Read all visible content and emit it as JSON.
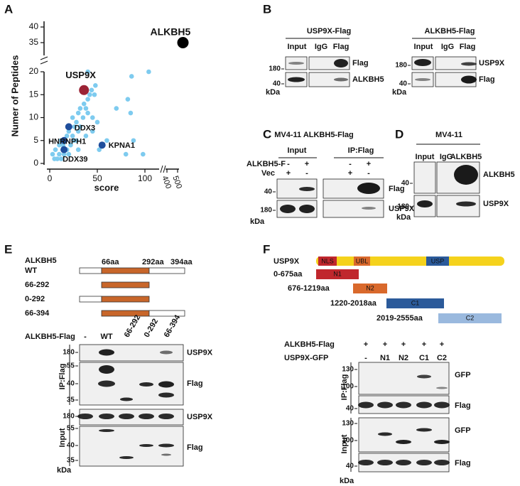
{
  "panel_a": {
    "label": "A",
    "type": "scatter",
    "ylabel": "Numer of Peptides",
    "xlabel": "score",
    "xticks": [
      0,
      50,
      100,
      400,
      500
    ],
    "yticks": [
      0,
      5,
      10,
      15,
      20,
      35,
      40
    ],
    "color": "#7ecbef",
    "x": [
      5,
      8,
      10,
      12,
      3,
      15,
      18,
      20,
      6,
      10,
      14,
      22,
      25,
      28,
      12,
      18,
      24,
      30,
      20,
      26,
      32,
      28,
      35,
      24,
      30,
      38,
      32,
      36,
      40,
      42,
      44,
      48,
      47,
      40,
      45,
      50,
      38,
      60,
      52,
      30,
      80,
      88,
      98,
      86,
      104,
      85,
      40,
      82,
      70,
      45
    ],
    "y": [
      1,
      1,
      2,
      1,
      2,
      2,
      3,
      2,
      3,
      4,
      4,
      4,
      5,
      5,
      5,
      6,
      6,
      7,
      7,
      8,
      8,
      9,
      10,
      10,
      11,
      12,
      12,
      13,
      14,
      15,
      16,
      17,
      15,
      11,
      10,
      9,
      6,
      5,
      3,
      3,
      2,
      5,
      2,
      19,
      20,
      11,
      20,
      14,
      12,
      7
    ],
    "highlights": [
      {
        "name": "ALKBH5",
        "x": 550,
        "y": 35,
        "color": "#000000"
      },
      {
        "name": "USP9X",
        "x": 36,
        "y": 16,
        "color": "#9b2335"
      },
      {
        "name": "DDX3",
        "x": 20,
        "y": 8,
        "color": "#1f4e9c"
      },
      {
        "name": "HNRNPH1",
        "x": 15,
        "y": 5,
        "color": "#1f4e9c"
      },
      {
        "name": "KPNA1",
        "x": 55,
        "y": 4,
        "color": "#1f4e9c"
      },
      {
        "name": "DDX39",
        "x": 15,
        "y": 3,
        "color": "#1f4e9c"
      }
    ]
  },
  "panel_b": {
    "label": "B",
    "blots": [
      {
        "title": "USP9X-Flag",
        "lanes": [
          "Input",
          "IgG",
          "Flag"
        ],
        "bands": [
          "Flag",
          "ALKBH5"
        ],
        "markers": [
          180,
          40
        ],
        "unit": "kDa"
      },
      {
        "title": "ALKBH5-Flag",
        "lanes": [
          "Input",
          "IgG",
          "Flag"
        ],
        "bands": [
          "USP9X",
          "Flag"
        ],
        "markers": [
          180,
          40
        ],
        "unit": "kDa"
      }
    ]
  },
  "panel_c": {
    "label": "C",
    "title": "MV4-11 ALKBH5-Flag",
    "groups": [
      "Input",
      "IP:Flag"
    ],
    "conditions": [
      {
        "name": "ALKBH5-F",
        "signs": [
          "-",
          "+",
          "-",
          "+"
        ]
      },
      {
        "name": "Vec",
        "signs": [
          "+",
          "-",
          "+",
          "-"
        ]
      }
    ],
    "bands": [
      "Flag",
      "USP9X"
    ],
    "markers": [
      40,
      180
    ],
    "unit": "kDa"
  },
  "panel_d": {
    "label": "D",
    "title": "MV4-11",
    "lanes": [
      "Input",
      "IgG",
      "ALKBH5"
    ],
    "bands": [
      "ALKBH5",
      "USP9X"
    ],
    "markers": [
      40,
      180
    ],
    "unit": "kDa"
  },
  "panel_e": {
    "label": "E",
    "protein": "ALKBH5",
    "positions": [
      "66aa",
      "292aa",
      "394aa"
    ],
    "constructs": [
      "WT",
      "66-292",
      "0-292",
      "66-394"
    ],
    "condition": "ALKBH5-Flag",
    "lanes": [
      "-",
      "WT",
      "66-292",
      "0-292",
      "66-394"
    ],
    "blots": [
      {
        "name": "IP:Flag",
        "markers": [
          180,
          55,
          40,
          35
        ],
        "bands": [
          "USP9X",
          "Flag"
        ]
      },
      {
        "name": "Input",
        "markers": [
          180,
          55,
          40,
          35
        ],
        "bands": [
          "USP9X",
          "Flag"
        ]
      }
    ],
    "unit": "kDa"
  },
  "panel_f": {
    "label": "F",
    "protein": "USP9X",
    "domains": [
      "NLS",
      "UBL",
      "USP"
    ],
    "fragments": [
      {
        "range": "0-675aa",
        "name": "N1"
      },
      {
        "range": "676-1219aa",
        "name": "N2"
      },
      {
        "range": "1220-2018aa",
        "name": "C1"
      },
      {
        "range": "2019-2555aa",
        "name": "C2"
      }
    ],
    "conditions": [
      {
        "name": "ALKBH5-Flag",
        "lanes": [
          "+",
          "+",
          "+",
          "+",
          "+"
        ]
      },
      {
        "name": "USP9X-GFP",
        "lanes": [
          "-",
          "N1",
          "N2",
          "C1",
          "C2"
        ]
      }
    ],
    "blots": [
      {
        "name": "IP:Flag",
        "markers": [
          130,
          100,
          40
        ],
        "bands": [
          "GFP",
          "Flag"
        ]
      },
      {
        "name": "Input",
        "markers": [
          130,
          100,
          40
        ],
        "bands": [
          "GFP",
          "Flag"
        ]
      }
    ],
    "unit": "kDa"
  }
}
